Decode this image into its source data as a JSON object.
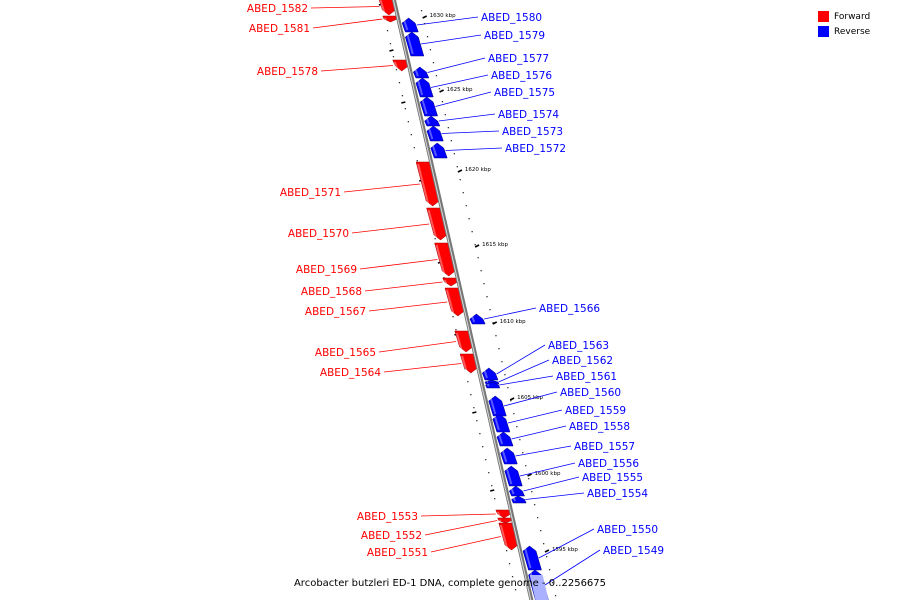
{
  "legend": {
    "forward": {
      "label": "Forward",
      "color": "#ff0000"
    },
    "reverse": {
      "label": "Reverse",
      "color": "#0000ff"
    }
  },
  "caption": "Arcobacter butzleri ED-1 DNA, complete genome - 0..2256675",
  "ticks": [
    "1630 kbp",
    "1625 kbp",
    "1620 kbp",
    "1615 kbp",
    "1610 kbp",
    "1605 kbp",
    "1600 kbp",
    "1595 kbp"
  ],
  "genes": [
    {
      "name": "ABED_1582",
      "strand": "forward"
    },
    {
      "name": "ABED_1581",
      "strand": "forward"
    },
    {
      "name": "ABED_1580",
      "strand": "reverse"
    },
    {
      "name": "ABED_1579",
      "strand": "reverse"
    },
    {
      "name": "ABED_1578",
      "strand": "forward"
    },
    {
      "name": "ABED_1577",
      "strand": "reverse"
    },
    {
      "name": "ABED_1576",
      "strand": "reverse"
    },
    {
      "name": "ABED_1575",
      "strand": "reverse"
    },
    {
      "name": "ABED_1574",
      "strand": "reverse"
    },
    {
      "name": "ABED_1573",
      "strand": "reverse"
    },
    {
      "name": "ABED_1572",
      "strand": "reverse"
    },
    {
      "name": "ABED_1571",
      "strand": "forward"
    },
    {
      "name": "ABED_1570",
      "strand": "forward"
    },
    {
      "name": "ABED_1569",
      "strand": "forward"
    },
    {
      "name": "ABED_1568",
      "strand": "forward"
    },
    {
      "name": "ABED_1567",
      "strand": "forward"
    },
    {
      "name": "ABED_1566",
      "strand": "reverse"
    },
    {
      "name": "ABED_1565",
      "strand": "forward"
    },
    {
      "name": "ABED_1564",
      "strand": "forward"
    },
    {
      "name": "ABED_1563",
      "strand": "reverse"
    },
    {
      "name": "ABED_1562",
      "strand": "reverse"
    },
    {
      "name": "ABED_1561",
      "strand": "reverse"
    },
    {
      "name": "ABED_1560",
      "strand": "reverse"
    },
    {
      "name": "ABED_1559",
      "strand": "reverse"
    },
    {
      "name": "ABED_1558",
      "strand": "reverse"
    },
    {
      "name": "ABED_1557",
      "strand": "reverse"
    },
    {
      "name": "ABED_1556",
      "strand": "reverse"
    },
    {
      "name": "ABED_1555",
      "strand": "reverse"
    },
    {
      "name": "ABED_1554",
      "strand": "reverse"
    },
    {
      "name": "ABED_1553",
      "strand": "forward"
    },
    {
      "name": "ABED_1552",
      "strand": "forward"
    },
    {
      "name": "ABED_1551",
      "strand": "forward"
    },
    {
      "name": "ABED_1550",
      "strand": "reverse"
    },
    {
      "name": "ABED_1549",
      "strand": "reverse"
    }
  ]
}
